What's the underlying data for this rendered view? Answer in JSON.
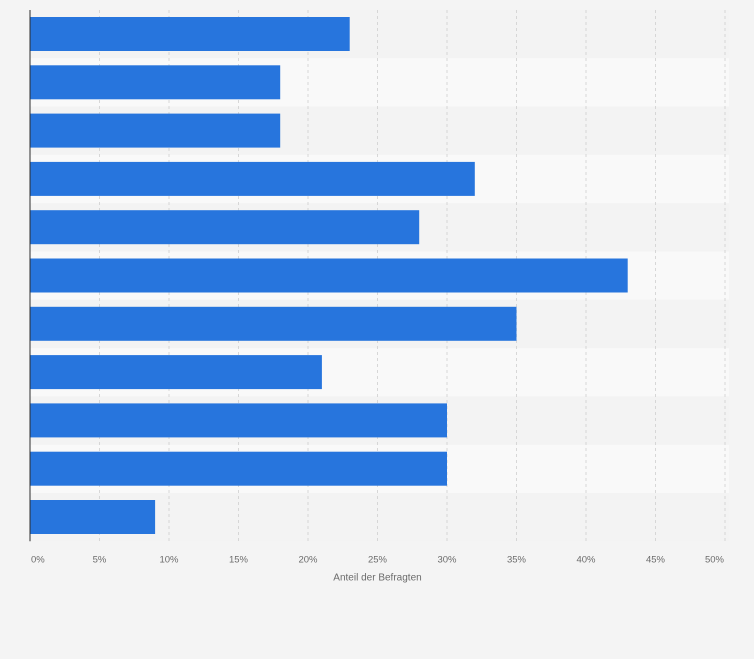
{
  "chart_data": {
    "type": "bar",
    "orientation": "horizontal",
    "values": [
      23,
      18,
      18,
      32,
      28,
      43,
      35,
      21,
      30,
      30,
      9
    ],
    "categories": [
      "",
      "",
      "",
      "",
      "",
      "",
      "",
      "",
      "",
      "",
      ""
    ],
    "xlabel": "Anteil der Befragten",
    "ylabel": "",
    "xlim": [
      0,
      50
    ],
    "x_ticks": [
      0,
      5,
      10,
      15,
      20,
      25,
      30,
      35,
      40,
      45,
      50
    ],
    "x_tick_labels": [
      "0%",
      "5%",
      "10%",
      "15%",
      "20%",
      "25%",
      "30%",
      "35%",
      "40%",
      "45%",
      "50%"
    ],
    "grid": true,
    "colors": {
      "bar": "#2775dd",
      "band_dark": "#f3f3f3",
      "band_light": "#f9f9f9",
      "grid": "#cfcfcf",
      "axis": "#2b2b2b",
      "text": "#6b6b6b"
    }
  }
}
